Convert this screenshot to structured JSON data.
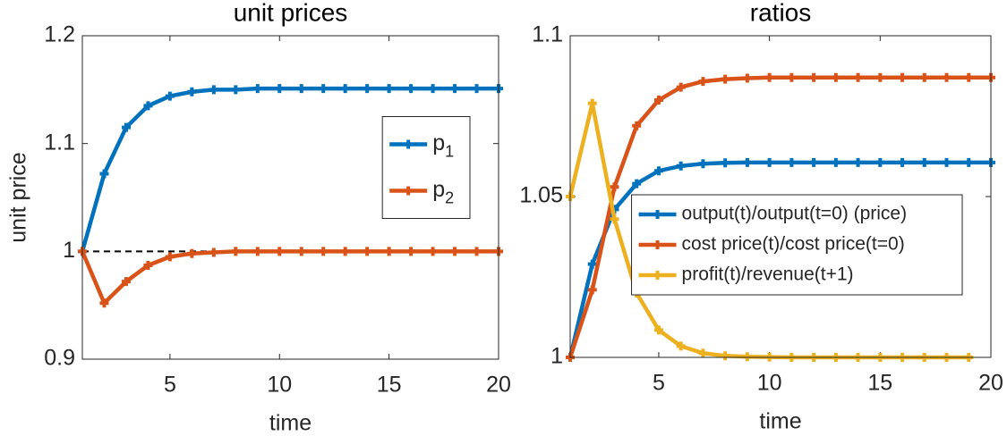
{
  "chart_data": [
    {
      "type": "line",
      "title": "unit prices",
      "xlabel": "time",
      "ylabel": "unit price",
      "x": [
        1,
        2,
        3,
        4,
        5,
        6,
        7,
        8,
        9,
        10,
        11,
        12,
        13,
        14,
        15,
        16,
        17,
        18,
        19,
        20
      ],
      "xlim": [
        1,
        20
      ],
      "xticks": [
        5,
        10,
        15,
        20
      ],
      "ylim": [
        0.9,
        1.2
      ],
      "yticks": [
        0.9,
        1,
        1.1,
        1.2
      ],
      "reference_line": 1,
      "legend": "east",
      "series": [
        {
          "name": "p1",
          "color": "#0072bd",
          "values": [
            1,
            1.072,
            1.115,
            1.135,
            1.144,
            1.148,
            1.15,
            1.15,
            1.151,
            1.151,
            1.151,
            1.151,
            1.151,
            1.151,
            1.151,
            1.151,
            1.151,
            1.151,
            1.151,
            1.151
          ]
        },
        {
          "name": "p2",
          "color": "#d95319",
          "values": [
            1,
            0.952,
            0.972,
            0.987,
            0.995,
            0.998,
            0.999,
            1,
            1,
            1,
            1,
            1,
            1,
            1,
            1,
            1,
            1,
            1,
            1,
            1
          ]
        }
      ]
    },
    {
      "type": "line",
      "title": "ratios",
      "xlabel": "time",
      "x": [
        1,
        2,
        3,
        4,
        5,
        6,
        7,
        8,
        9,
        10,
        11,
        12,
        13,
        14,
        15,
        16,
        17,
        18,
        19,
        20
      ],
      "xlim": [
        1,
        20
      ],
      "xticks": [
        5,
        10,
        15,
        20
      ],
      "ylim": [
        1,
        1.1
      ],
      "yticks": [
        1,
        1.05,
        1.1
      ],
      "legend": "southeast",
      "series": [
        {
          "name": "output(t)/output(t=0) (price)",
          "color": "#0072bd",
          "values": [
            1,
            1.029,
            1.046,
            1.054,
            1.058,
            1.0595,
            1.0602,
            1.0605,
            1.0606,
            1.0606,
            1.0606,
            1.0606,
            1.0606,
            1.0606,
            1.0606,
            1.0606,
            1.0606,
            1.0606,
            1.0606,
            1.0606
          ]
        },
        {
          "name": "cost price(t)/cost price(t=0)",
          "color": "#d95319",
          "values": [
            1,
            1.021,
            1.053,
            1.072,
            1.08,
            1.084,
            1.0858,
            1.0865,
            1.0868,
            1.087,
            1.087,
            1.087,
            1.087,
            1.087,
            1.087,
            1.087,
            1.087,
            1.087,
            1.087,
            1.087
          ]
        },
        {
          "name": "profit(t)/revenue(t+1)",
          "color": "#edb120",
          "values": [
            1.05,
            1.079,
            1.043,
            1.02,
            1.0085,
            1.0035,
            1.0013,
            1.0005,
            1.0002,
            1.0001,
            1,
            1,
            1,
            1,
            1,
            1,
            1,
            1,
            1,
            null
          ]
        }
      ]
    }
  ]
}
